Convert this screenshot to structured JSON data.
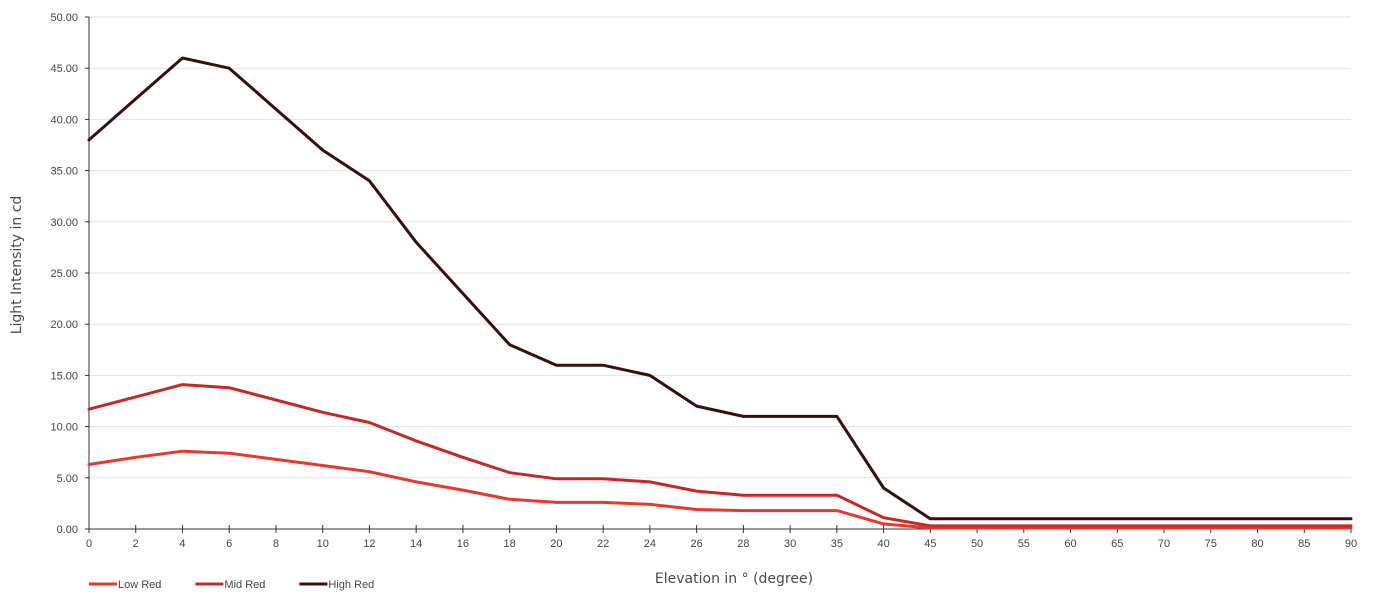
{
  "chart_data": {
    "type": "line",
    "title": "",
    "xlabel": "Elevation in ° (degree)",
    "ylabel": "Light Intensity in cd",
    "categories": [
      "0",
      "2",
      "4",
      "6",
      "8",
      "10",
      "12",
      "14",
      "16",
      "18",
      "20",
      "22",
      "24",
      "26",
      "28",
      "30",
      "35",
      "40",
      "45",
      "50",
      "55",
      "60",
      "65",
      "70",
      "75",
      "80",
      "85",
      "90"
    ],
    "ylim": [
      0,
      50
    ],
    "yticks": [
      "0.00",
      "5.00",
      "10.00",
      "15.00",
      "20.00",
      "25.00",
      "30.00",
      "35.00",
      "40.00",
      "45.00",
      "50.00"
    ],
    "grid": true,
    "legend_position": "bottom-left",
    "series": [
      {
        "name": "Low Red",
        "color": "#e8372c",
        "values": [
          6.3,
          7.0,
          7.6,
          7.4,
          6.8,
          6.2,
          5.6,
          4.6,
          3.8,
          2.9,
          2.6,
          2.6,
          2.4,
          1.9,
          1.8,
          1.8,
          1.8,
          0.5,
          0.1,
          0.1,
          0.1,
          0.1,
          0.1,
          0.1,
          0.1,
          0.1,
          0.1,
          0.1
        ]
      },
      {
        "name": "Mid Red",
        "color": "#c62828",
        "values": [
          11.7,
          12.9,
          14.1,
          13.8,
          12.6,
          11.4,
          10.4,
          8.6,
          7.0,
          5.5,
          4.9,
          4.9,
          4.6,
          3.7,
          3.3,
          3.3,
          3.3,
          1.1,
          0.3,
          0.3,
          0.3,
          0.3,
          0.3,
          0.3,
          0.3,
          0.3,
          0.3,
          0.3
        ]
      },
      {
        "name": "High Red",
        "color": "#3a0d0f",
        "values": [
          38.0,
          42.0,
          46.0,
          45.0,
          41.0,
          37.0,
          34.0,
          28.0,
          23.0,
          18.0,
          16.0,
          16.0,
          15.0,
          12.0,
          11.0,
          11.0,
          11.0,
          4.0,
          1.0,
          1.0,
          1.0,
          1.0,
          1.0,
          1.0,
          1.0,
          1.0,
          1.0,
          1.0
        ]
      }
    ]
  }
}
